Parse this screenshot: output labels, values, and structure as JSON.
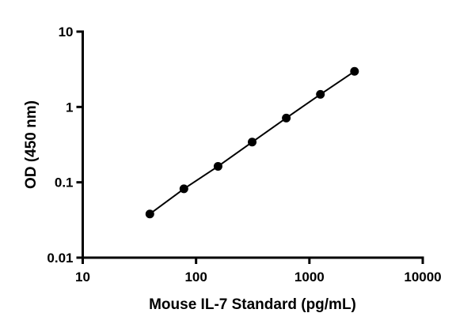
{
  "chart_data": {
    "type": "line",
    "title": "",
    "xlabel": "Mouse IL-7 Standard (pg/mL)",
    "ylabel": "OD (450 nm)",
    "xscale": "log",
    "yscale": "log",
    "xlim": [
      10,
      10000
    ],
    "ylim": [
      0.01,
      10
    ],
    "xticks": [
      "10",
      "100",
      "1000",
      "10000"
    ],
    "yticks": [
      "0.01",
      "0.1",
      "1",
      "10"
    ],
    "grid": false,
    "legend": "none",
    "series": [
      {
        "x": [
          39.1,
          78.1,
          156.25,
          312.5,
          625,
          1250,
          2500
        ],
        "y": [
          0.038,
          0.082,
          0.163,
          0.342,
          0.713,
          1.47,
          2.97
        ],
        "marker": "filled-circle",
        "color": "#000000"
      }
    ]
  }
}
